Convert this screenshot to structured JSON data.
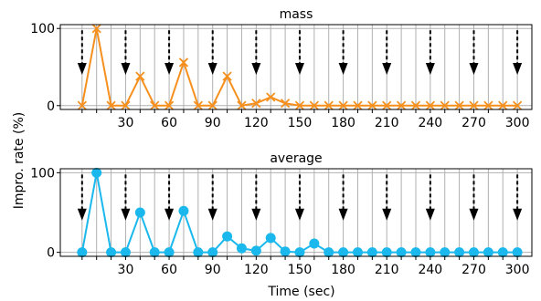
{
  "figure": {
    "ylabel": "Impro. rate (%)",
    "xlabel": "Time (sec)"
  },
  "chart_data": [
    {
      "type": "line",
      "title": "mass",
      "x": [
        0,
        10,
        20,
        30,
        40,
        50,
        60,
        70,
        80,
        90,
        100,
        110,
        120,
        130,
        140,
        150,
        160,
        170,
        180,
        190,
        200,
        210,
        220,
        230,
        240,
        250,
        260,
        270,
        280,
        290,
        300
      ],
      "series": [
        {
          "values": [
            0,
            100,
            0,
            0,
            38,
            0,
            0,
            56,
            0,
            0,
            38,
            0,
            3,
            11,
            3,
            0,
            0,
            0,
            0,
            0,
            0,
            0,
            0,
            0,
            0,
            0,
            0,
            0,
            0,
            0,
            0
          ],
          "color": "#f5901e",
          "marker": "x"
        }
      ],
      "xlim": [
        -15,
        310
      ],
      "ylim": [
        -5,
        105
      ],
      "xticks": [
        30,
        60,
        90,
        120,
        150,
        180,
        210,
        240,
        270,
        300
      ],
      "yticks": [
        0,
        100
      ],
      "arrows_at": [
        0,
        30,
        60,
        90,
        120,
        150,
        180,
        210,
        240,
        270,
        300
      ],
      "grid_vertical": true,
      "grid_horizontal_at": [
        0,
        100
      ]
    },
    {
      "type": "line",
      "title": "average",
      "x": [
        0,
        10,
        20,
        30,
        40,
        50,
        60,
        70,
        80,
        90,
        100,
        110,
        120,
        130,
        140,
        150,
        160,
        170,
        180,
        190,
        200,
        210,
        220,
        230,
        240,
        250,
        260,
        270,
        280,
        290,
        300
      ],
      "series": [
        {
          "values": [
            0,
            100,
            0,
            0,
            50,
            0,
            0,
            52,
            0,
            0,
            20,
            5,
            2,
            18,
            1,
            0,
            11,
            0,
            0,
            0,
            0,
            0,
            0,
            0,
            0,
            0,
            0,
            0,
            0,
            0,
            0
          ],
          "color": "#1ab8ec",
          "marker": "o"
        }
      ],
      "xlim": [
        -15,
        310
      ],
      "ylim": [
        -5,
        105
      ],
      "xticks": [
        30,
        60,
        90,
        120,
        150,
        180,
        210,
        240,
        270,
        300
      ],
      "yticks": [
        0,
        100
      ],
      "arrows_at": [
        0,
        30,
        60,
        90,
        120,
        150,
        180,
        210,
        240,
        270,
        300
      ],
      "grid_vertical": true,
      "grid_horizontal_at": [
        0,
        100
      ]
    }
  ]
}
